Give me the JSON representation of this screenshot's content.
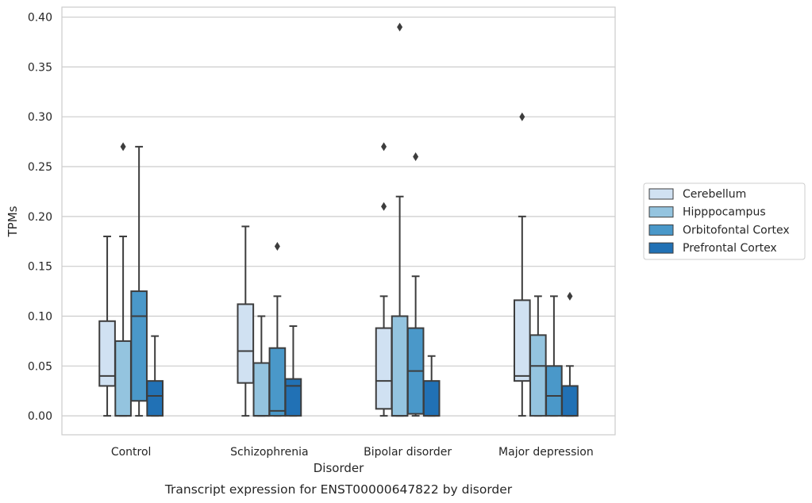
{
  "chart_data": {
    "type": "boxplot",
    "xlabel": "Disorder",
    "ylabel": "TPMs",
    "caption": "Transcript expression for ENST00000647822 by disorder",
    "ylim": [
      -0.019,
      0.41
    ],
    "yticks": [
      "0.00",
      "0.05",
      "0.10",
      "0.15",
      "0.20",
      "0.25",
      "0.30",
      "0.35",
      "0.40"
    ],
    "grid": true,
    "legend_position": "right",
    "categories": [
      "Control",
      "Schizophrenia",
      "Bipolar disorder",
      "Major depression"
    ],
    "series": [
      {
        "name": "Cerebellum",
        "color": "#d0e1f2",
        "boxes": [
          {
            "whisker_low": 0.0,
            "q1": 0.03,
            "median": 0.04,
            "q3": 0.095,
            "whisker_high": 0.18,
            "outliers": []
          },
          {
            "whisker_low": 0.0,
            "q1": 0.033,
            "median": 0.065,
            "q3": 0.112,
            "whisker_high": 0.19,
            "outliers": []
          },
          {
            "whisker_low": 0.0,
            "q1": 0.007,
            "median": 0.035,
            "q3": 0.088,
            "whisker_high": 0.12,
            "outliers": [
              0.21,
              0.27
            ]
          },
          {
            "whisker_low": 0.0,
            "q1": 0.035,
            "median": 0.04,
            "q3": 0.116,
            "whisker_high": 0.2,
            "outliers": [
              0.3
            ]
          }
        ]
      },
      {
        "name": "Hipppocampus",
        "color": "#94c4df",
        "boxes": [
          {
            "whisker_low": 0.0,
            "q1": 0.0,
            "median": 0.0,
            "q3": 0.075,
            "whisker_high": 0.18,
            "outliers": [
              0.27
            ]
          },
          {
            "whisker_low": 0.0,
            "q1": 0.0,
            "median": 0.0,
            "q3": 0.053,
            "whisker_high": 0.1,
            "outliers": []
          },
          {
            "whisker_low": 0.0,
            "q1": 0.0,
            "median": 0.0,
            "q3": 0.1,
            "whisker_high": 0.22,
            "outliers": [
              0.39
            ]
          },
          {
            "whisker_low": 0.0,
            "q1": 0.0,
            "median": 0.05,
            "q3": 0.081,
            "whisker_high": 0.12,
            "outliers": []
          }
        ]
      },
      {
        "name": "Orbitofontal Cortex",
        "color": "#4a98c9",
        "boxes": [
          {
            "whisker_low": 0.0,
            "q1": 0.015,
            "median": 0.1,
            "q3": 0.125,
            "whisker_high": 0.27,
            "outliers": []
          },
          {
            "whisker_low": 0.0,
            "q1": 0.0,
            "median": 0.005,
            "q3": 0.068,
            "whisker_high": 0.12,
            "outliers": [
              0.17
            ]
          },
          {
            "whisker_low": 0.0,
            "q1": 0.002,
            "median": 0.045,
            "q3": 0.088,
            "whisker_high": 0.14,
            "outliers": [
              0.26
            ]
          },
          {
            "whisker_low": 0.0,
            "q1": 0.0,
            "median": 0.02,
            "q3": 0.05,
            "whisker_high": 0.12,
            "outliers": []
          }
        ]
      },
      {
        "name": "Prefrontal Cortex",
        "color": "#2171b5",
        "boxes": [
          {
            "whisker_low": 0.0,
            "q1": 0.0,
            "median": 0.02,
            "q3": 0.035,
            "whisker_high": 0.08,
            "outliers": []
          },
          {
            "whisker_low": 0.0,
            "q1": 0.0,
            "median": 0.03,
            "q3": 0.037,
            "whisker_high": 0.09,
            "outliers": []
          },
          {
            "whisker_low": 0.0,
            "q1": 0.0,
            "median": 0.0,
            "q3": 0.035,
            "whisker_high": 0.06,
            "outliers": []
          },
          {
            "whisker_low": 0.0,
            "q1": 0.0,
            "median": 0.0,
            "q3": 0.03,
            "whisker_high": 0.05,
            "outliers": [
              0.12
            ]
          }
        ]
      }
    ]
  }
}
